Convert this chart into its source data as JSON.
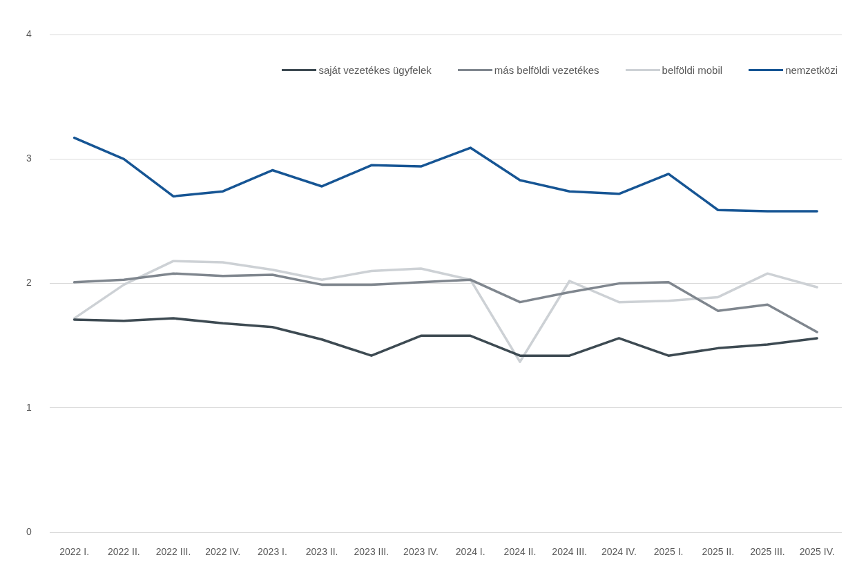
{
  "chart_data": {
    "type": "line",
    "categories": [
      "2022 I.",
      "2022 II.",
      "2022 III.",
      "2022 IV.",
      "2023 I.",
      "2023 II.",
      "2023 III.",
      "2023 IV.",
      "2024 I.",
      "2024 II.",
      "2024 III.",
      "2024 IV.",
      "2025 I.",
      "2025 II.",
      "2025 III.",
      "2025 IV."
    ],
    "series": [
      {
        "name": "saját vezetékes ügyfelek",
        "color": "#3d4a52",
        "values": [
          1.71,
          1.7,
          1.72,
          1.68,
          1.65,
          1.55,
          1.42,
          1.58,
          1.58,
          1.42,
          1.42,
          1.56,
          1.42,
          1.48,
          1.51,
          1.56
        ]
      },
      {
        "name": "más belföldi vezetékes",
        "color": "#7f868e",
        "values": [
          2.01,
          2.03,
          2.08,
          2.06,
          2.07,
          1.99,
          1.99,
          2.01,
          2.03,
          1.85,
          1.93,
          2.0,
          2.01,
          1.78,
          1.83,
          1.61
        ]
      },
      {
        "name": "belföldi mobil",
        "color": "#cdd1d5",
        "values": [
          1.72,
          1.99,
          2.18,
          2.17,
          2.11,
          2.03,
          2.1,
          2.12,
          2.03,
          1.37,
          2.02,
          1.85,
          1.86,
          1.89,
          2.08,
          1.97
        ]
      },
      {
        "name": "nemzetközi",
        "color": "#165594",
        "values": [
          3.17,
          3.0,
          2.7,
          2.74,
          2.91,
          2.78,
          2.95,
          2.94,
          3.09,
          2.83,
          2.74,
          2.72,
          2.88,
          2.59,
          2.58,
          2.58
        ]
      }
    ],
    "ylim": [
      0,
      4
    ],
    "yticks": [
      0,
      1,
      2,
      3,
      4
    ],
    "grid": "y",
    "legend": "top right",
    "line_style": "solid"
  }
}
